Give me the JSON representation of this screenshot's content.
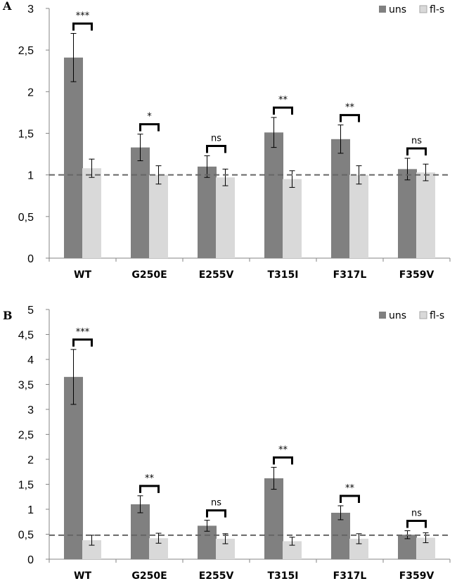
{
  "chart_data": [
    {
      "panel": "A",
      "type": "bar",
      "categories": [
        "WT",
        "G250E",
        "E255V",
        "T315I",
        "F317L",
        "F359V"
      ],
      "series": [
        {
          "name": "uns",
          "color": "#808080",
          "values": [
            2.41,
            1.33,
            1.1,
            1.51,
            1.43,
            1.07
          ],
          "errors": [
            0.29,
            0.16,
            0.13,
            0.18,
            0.17,
            0.13
          ]
        },
        {
          "name": "fl-s",
          "color": "#d9d9d9",
          "values": [
            1.08,
            1.0,
            0.97,
            0.95,
            1.0,
            1.03
          ],
          "errors": [
            0.11,
            0.11,
            0.1,
            0.1,
            0.11,
            0.1
          ]
        }
      ],
      "significance": [
        "***",
        "*",
        "ns",
        "**",
        "**",
        "ns"
      ],
      "ylim": [
        0,
        3
      ],
      "yticks": [
        0,
        0.5,
        1,
        1.5,
        2,
        2.5,
        3
      ],
      "ytick_labels": [
        "0",
        "0,5",
        "1",
        "1,5",
        "2",
        "2,5",
        "3"
      ],
      "reference_line": 1,
      "title": "",
      "xlabel": "",
      "ylabel": "",
      "legend_position": "top-right"
    },
    {
      "panel": "B",
      "type": "bar",
      "categories": [
        "WT",
        "G250E",
        "E255V",
        "T315I",
        "F317L",
        "F359V"
      ],
      "series": [
        {
          "name": "uns",
          "color": "#808080",
          "values": [
            3.65,
            1.1,
            0.67,
            1.62,
            0.93,
            0.49
          ],
          "errors": [
            0.55,
            0.17,
            0.11,
            0.22,
            0.14,
            0.08
          ]
        },
        {
          "name": "fl-s",
          "color": "#d9d9d9",
          "values": [
            0.38,
            0.42,
            0.41,
            0.36,
            0.41,
            0.43
          ],
          "errors": [
            0.1,
            0.1,
            0.1,
            0.08,
            0.1,
            0.1
          ]
        }
      ],
      "significance": [
        "***",
        "**",
        "ns",
        "**",
        "**",
        "ns"
      ],
      "ylim": [
        0,
        5
      ],
      "yticks": [
        0,
        0.5,
        1,
        1.5,
        2,
        2.5,
        3,
        3.5,
        4,
        4.5,
        5
      ],
      "ytick_labels": [
        "0",
        "0,5",
        "1",
        "1,5",
        "2",
        "2,5",
        "3",
        "3,5",
        "4",
        "4,5",
        "5"
      ],
      "reference_line": 0.48,
      "title": "",
      "xlabel": "",
      "ylabel": "",
      "legend_position": "top-right"
    }
  ]
}
